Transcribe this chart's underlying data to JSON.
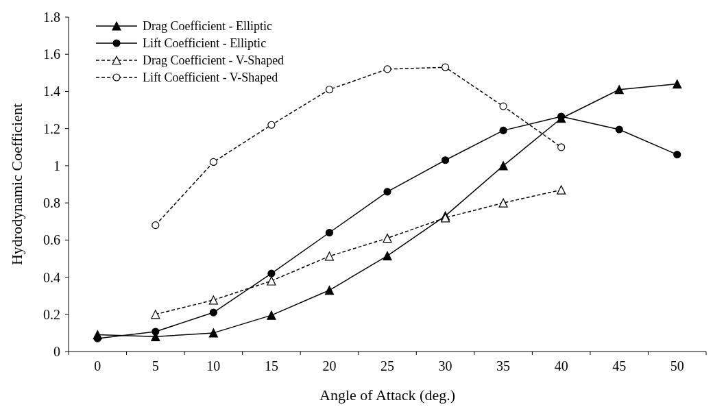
{
  "chart_data": {
    "type": "line",
    "xlabel": "Angle of Attack (deg.)",
    "ylabel": "Hydrodynamic Coefficient",
    "categories": [
      "0",
      "5",
      "10",
      "15",
      "20",
      "25",
      "30",
      "35",
      "40",
      "45",
      "50"
    ],
    "ylim": [
      0,
      1.8
    ],
    "yticks": [
      0,
      0.2,
      0.4,
      0.6,
      0.8,
      1,
      1.2,
      1.4,
      1.6,
      1.8
    ],
    "legend": "top left",
    "grid": false,
    "series": [
      {
        "name": "Drag Coefficient - Elliptic",
        "color": "#000000",
        "marker": "triangle",
        "line_style": "solid",
        "values": [
          0.09,
          0.08,
          0.1,
          0.195,
          0.33,
          0.515,
          0.73,
          1.0,
          1.255,
          1.41,
          1.44
        ]
      },
      {
        "name": "Lift Coefficient - Elliptic",
        "color": "#000000",
        "marker": "circle",
        "line_style": "solid",
        "values": [
          0.07,
          0.107,
          0.21,
          0.42,
          0.64,
          0.86,
          1.03,
          1.19,
          1.265,
          1.195,
          1.06
        ]
      },
      {
        "name": "Drag Coefficient - V-Shaped",
        "color": "#000000",
        "marker": "triangle",
        "line_style": "dashed",
        "values": [
          null,
          0.2,
          0.277,
          0.38,
          0.513,
          0.61,
          0.72,
          0.8,
          0.87,
          null,
          null
        ]
      },
      {
        "name": "Lift Coefficient - V-Shaped",
        "color": "#000000",
        "marker": "circle",
        "line_style": "dashed",
        "values": [
          null,
          0.68,
          1.02,
          1.22,
          1.41,
          1.52,
          1.53,
          1.32,
          1.1,
          null,
          null
        ]
      }
    ]
  }
}
